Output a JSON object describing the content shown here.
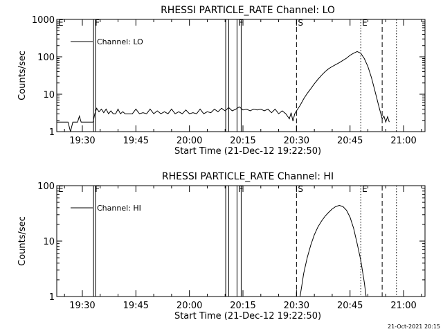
{
  "footer_timestamp": "21-Oct-2021 20:15",
  "chart_data": [
    {
      "type": "line",
      "title": "RHESSI PARTICLE_RATE Channel: LO",
      "xlabel": "Start Time (21-Dec-12 19:22:50)",
      "ylabel": "Counts/sec",
      "y_scale": "log",
      "ylim": [
        1,
        1000
      ],
      "y_ticks": [
        1,
        10,
        100,
        1000
      ],
      "y_tick_labels": [
        "1",
        "10",
        "100",
        "1000"
      ],
      "xlim": [
        "19:22:50",
        "21:06:00"
      ],
      "x_ticks": [
        "19:30",
        "19:45",
        "20:00",
        "20:15",
        "20:30",
        "20:45",
        "21:00"
      ],
      "legend": {
        "label": "Channel: LO",
        "placement": "top-left"
      },
      "series": [
        {
          "name": "Channel: LO",
          "points": [
            [
              "19:22:50",
              1.8
            ],
            [
              "19:26:00",
              1.8
            ],
            [
              "19:26:40",
              1.0
            ],
            [
              "19:27:20",
              1.8
            ],
            [
              "19:28:40",
              1.8
            ],
            [
              "19:29:10",
              2.6
            ],
            [
              "19:29:40",
              1.8
            ],
            [
              "19:33:00",
              1.8
            ],
            [
              "19:33:30",
              3.0
            ],
            [
              "19:34:00",
              4.2
            ],
            [
              "19:34:40",
              3.4
            ],
            [
              "19:35:20",
              4.0
            ],
            [
              "19:36:00",
              3.2
            ],
            [
              "19:36:40",
              4.0
            ],
            [
              "19:37:20",
              3.0
            ],
            [
              "19:38:00",
              3.6
            ],
            [
              "19:38:40",
              3.0
            ],
            [
              "19:39:20",
              3.0
            ],
            [
              "19:40:00",
              4.0
            ],
            [
              "19:40:40",
              3.0
            ],
            [
              "19:41:20",
              3.4
            ],
            [
              "19:42:00",
              3.0
            ],
            [
              "19:43:00",
              3.0
            ],
            [
              "19:44:00",
              3.0
            ],
            [
              "19:45:00",
              4.0
            ],
            [
              "19:46:00",
              3.0
            ],
            [
              "19:47:00",
              3.2
            ],
            [
              "19:48:00",
              3.0
            ],
            [
              "19:49:00",
              4.0
            ],
            [
              "19:50:00",
              3.0
            ],
            [
              "19:51:00",
              3.6
            ],
            [
              "19:52:00",
              3.0
            ],
            [
              "19:53:00",
              3.4
            ],
            [
              "19:54:00",
              3.0
            ],
            [
              "19:55:00",
              4.0
            ],
            [
              "19:56:00",
              3.0
            ],
            [
              "19:57:00",
              3.4
            ],
            [
              "19:58:00",
              3.0
            ],
            [
              "19:59:00",
              3.8
            ],
            [
              "20:00:00",
              3.0
            ],
            [
              "20:01:00",
              3.2
            ],
            [
              "20:02:00",
              3.0
            ],
            [
              "20:03:00",
              4.0
            ],
            [
              "20:04:00",
              3.0
            ],
            [
              "20:05:00",
              3.4
            ],
            [
              "20:06:00",
              3.2
            ],
            [
              "20:07:00",
              4.0
            ],
            [
              "20:08:00",
              3.4
            ],
            [
              "20:09:00",
              4.2
            ],
            [
              "20:10:00",
              3.6
            ],
            [
              "20:11:00",
              4.4
            ],
            [
              "20:12:00",
              3.6
            ],
            [
              "20:13:00",
              4.0
            ],
            [
              "20:14:00",
              4.6
            ],
            [
              "20:15:00",
              3.8
            ],
            [
              "20:16:00",
              4.0
            ],
            [
              "20:17:00",
              3.6
            ],
            [
              "20:18:00",
              4.0
            ],
            [
              "20:19:00",
              3.8
            ],
            [
              "20:20:00",
              4.0
            ],
            [
              "20:21:00",
              3.6
            ],
            [
              "20:22:00",
              4.0
            ],
            [
              "20:23:00",
              3.2
            ],
            [
              "20:24:00",
              4.0
            ],
            [
              "20:25:00",
              3.0
            ],
            [
              "20:26:00",
              3.6
            ],
            [
              "20:27:00",
              3.0
            ],
            [
              "20:28:00",
              2.2
            ],
            [
              "20:28:30",
              3.2
            ],
            [
              "20:29:00",
              1.9
            ],
            [
              "20:29:30",
              3.0
            ],
            [
              "20:30:00",
              3.6
            ],
            [
              "20:31:00",
              5.0
            ],
            [
              "20:32:00",
              7.5
            ],
            [
              "20:33:00",
              10.5
            ],
            [
              "20:34:00",
              14.0
            ],
            [
              "20:35:00",
              19.0
            ],
            [
              "20:36:00",
              25.0
            ],
            [
              "20:37:00",
              32.0
            ],
            [
              "20:38:00",
              40.0
            ],
            [
              "20:39:00",
              48.0
            ],
            [
              "20:40:00",
              55.0
            ],
            [
              "20:41:00",
              62.0
            ],
            [
              "20:42:00",
              70.0
            ],
            [
              "20:43:00",
              80.0
            ],
            [
              "20:44:00",
              92.0
            ],
            [
              "20:45:00",
              110.0
            ],
            [
              "20:46:00",
              125.0
            ],
            [
              "20:47:00",
              138.0
            ],
            [
              "20:48:00",
              125.0
            ],
            [
              "20:49:00",
              90.0
            ],
            [
              "20:50:00",
              55.0
            ],
            [
              "20:51:00",
              28.0
            ],
            [
              "20:52:00",
              12.0
            ],
            [
              "20:53:00",
              5.0
            ],
            [
              "20:54:00",
              2.2
            ],
            [
              "20:54:30",
              2.6
            ],
            [
              "20:55:00",
              1.8
            ],
            [
              "20:55:30",
              2.5
            ],
            [
              "20:56:00",
              1.8
            ]
          ]
        }
      ],
      "markers": [
        {
          "label": "E",
          "time": "19:22:50",
          "style": "dotted"
        },
        {
          "label": "F",
          "time": "19:33:08",
          "style": "solid"
        },
        {
          "label": "",
          "time": "19:33:40",
          "style": "solid"
        },
        {
          "label": "",
          "time": "20:10:10",
          "style": "solid"
        },
        {
          "label": "",
          "time": "20:11:00",
          "style": "solid"
        },
        {
          "label": "F",
          "time": "20:13:20",
          "style": "solid"
        },
        {
          "label": "",
          "time": "20:14:30",
          "style": "solid"
        },
        {
          "label": "S",
          "time": "20:30:00",
          "style": "dashed"
        },
        {
          "label": "E",
          "time": "20:48:00",
          "style": "dotted"
        },
        {
          "label": "",
          "time": "20:54:00",
          "style": "dashed"
        },
        {
          "label": "",
          "time": "20:58:00",
          "style": "dotted"
        }
      ]
    },
    {
      "type": "line",
      "title": "RHESSI PARTICLE_RATE Channel: HI",
      "xlabel": "Start Time (21-Dec-12 19:22:50)",
      "ylabel": "Counts/sec",
      "y_scale": "log",
      "ylim": [
        1,
        100
      ],
      "y_ticks": [
        1,
        10,
        100
      ],
      "y_tick_labels": [
        "1",
        "10",
        "100"
      ],
      "xlim": [
        "19:22:50",
        "21:06:00"
      ],
      "x_ticks": [
        "19:30",
        "19:45",
        "20:00",
        "20:15",
        "20:30",
        "20:45",
        "21:00"
      ],
      "legend": {
        "label": "Channel: HI",
        "placement": "top-left"
      },
      "series": [
        {
          "name": "Channel: HI",
          "points": [
            [
              "20:31:00",
              1.0
            ],
            [
              "20:31:30",
              1.6
            ],
            [
              "20:32:00",
              2.6
            ],
            [
              "20:33:00",
              5.0
            ],
            [
              "20:34:00",
              8.5
            ],
            [
              "20:35:00",
              13.0
            ],
            [
              "20:36:00",
              18.0
            ],
            [
              "20:37:00",
              23.0
            ],
            [
              "20:38:00",
              28.0
            ],
            [
              "20:39:00",
              33.0
            ],
            [
              "20:40:00",
              38.0
            ],
            [
              "20:41:00",
              42.0
            ],
            [
              "20:42:00",
              44.0
            ],
            [
              "20:43:00",
              42.0
            ],
            [
              "20:44:00",
              36.0
            ],
            [
              "20:45:00",
              27.0
            ],
            [
              "20:46:00",
              17.0
            ],
            [
              "20:47:00",
              9.0
            ],
            [
              "20:48:00",
              4.5
            ],
            [
              "20:49:00",
              1.8
            ],
            [
              "20:49:30",
              1.0
            ]
          ]
        }
      ],
      "markers": [
        {
          "label": "E",
          "time": "19:22:50",
          "style": "dotted"
        },
        {
          "label": "F",
          "time": "19:33:08",
          "style": "solid"
        },
        {
          "label": "",
          "time": "19:33:40",
          "style": "solid"
        },
        {
          "label": "",
          "time": "20:10:10",
          "style": "solid"
        },
        {
          "label": "",
          "time": "20:11:00",
          "style": "solid"
        },
        {
          "label": "F",
          "time": "20:13:20",
          "style": "solid"
        },
        {
          "label": "",
          "time": "20:14:30",
          "style": "solid"
        },
        {
          "label": "S",
          "time": "20:30:00",
          "style": "dashed"
        },
        {
          "label": "E",
          "time": "20:48:00",
          "style": "dotted"
        },
        {
          "label": "",
          "time": "20:54:00",
          "style": "dashed"
        },
        {
          "label": "",
          "time": "20:58:00",
          "style": "dotted"
        }
      ]
    }
  ]
}
